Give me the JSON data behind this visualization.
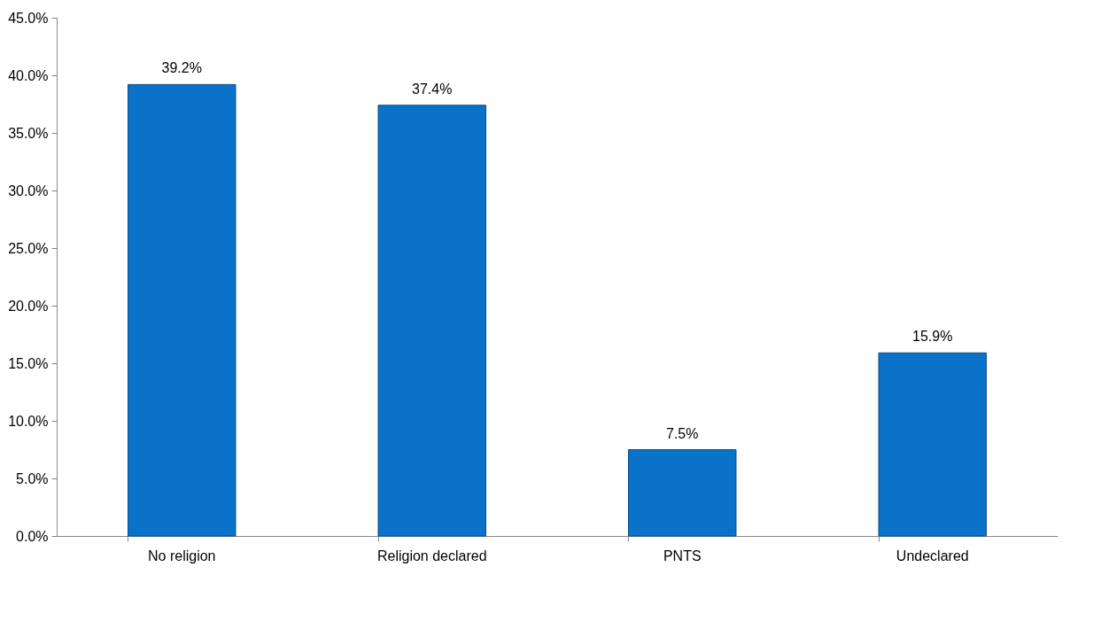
{
  "chart_data": {
    "type": "bar",
    "categories": [
      "No religion",
      "Religion declared",
      "PNTS",
      "Undeclared"
    ],
    "values": [
      39.2,
      37.4,
      7.5,
      15.9
    ],
    "color": "#0a72c8",
    "value_labels": [
      "39.2%",
      "37.4%",
      "7.5%",
      "15.9%"
    ],
    "ylim": [
      0,
      45
    ],
    "yticks": [
      {
        "value": 0,
        "label": "0.0%"
      },
      {
        "value": 5,
        "label": "5.0%"
      },
      {
        "value": 10,
        "label": "10.0%"
      },
      {
        "value": 15,
        "label": "15.0%"
      },
      {
        "value": 20,
        "label": "20.0%"
      },
      {
        "value": 25,
        "label": "25.0%"
      },
      {
        "value": 30,
        "label": "30.0%"
      },
      {
        "value": 35,
        "label": "35.0%"
      },
      {
        "value": 40,
        "label": "40.0%"
      },
      {
        "value": 45,
        "label": "45.0%"
      }
    ],
    "grid": false
  }
}
